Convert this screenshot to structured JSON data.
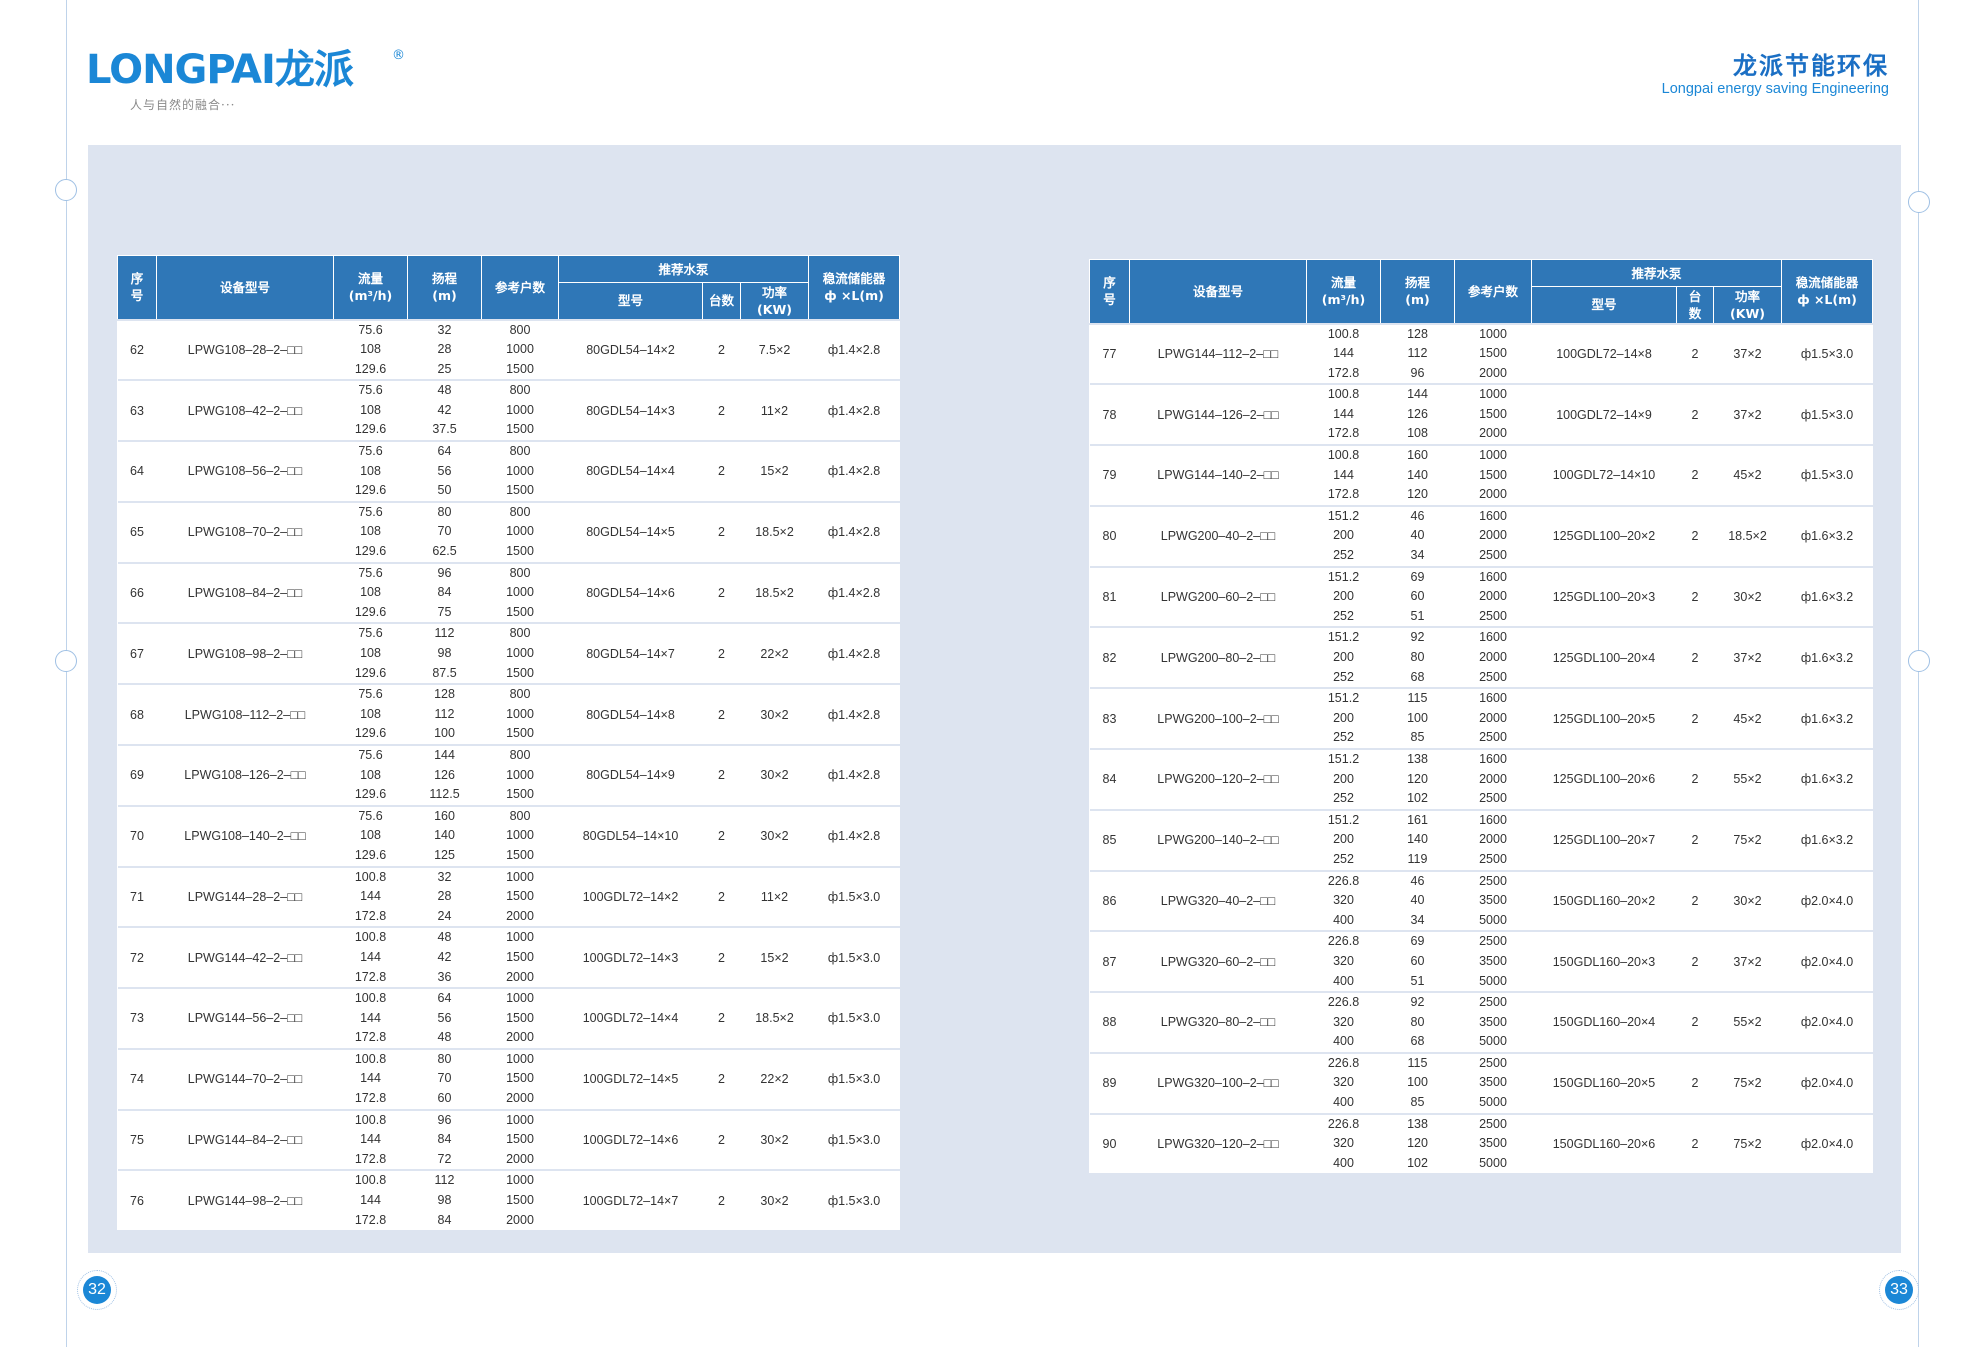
{
  "header": {
    "logo_text": "LONGPAI龙派",
    "logo_reg": "®",
    "slogan": "人与自然的融合···",
    "brand_cn": "龙派节能环保",
    "brand_en": "Longpai energy saving Engineering"
  },
  "pages": {
    "left": "32",
    "right": "33"
  },
  "table_headers": {
    "seq": "序号",
    "model": "设备型号",
    "flow": "流量",
    "flow_unit": "(m³/h)",
    "head": "扬程",
    "head_unit": "(m)",
    "households": "参考户数",
    "pump": "推荐水泵",
    "pump_model": "型号",
    "qty": "台数",
    "power": "功率",
    "power_unit": "(KW)",
    "tank": "稳流储能器",
    "tank_unit": "ф ×L(m)"
  },
  "left_table": [
    {
      "no": "62",
      "model": "LPWG108–28–2–□□",
      "flow": [
        "75.6",
        "108",
        "129.6"
      ],
      "head": [
        "32",
        "28",
        "25"
      ],
      "hh": [
        "800",
        "1000",
        "1500"
      ],
      "pump": "80GDL54–14×2",
      "qty": "2",
      "power": "7.5×2",
      "tank": "ф1.4×2.8"
    },
    {
      "no": "63",
      "model": "LPWG108–42–2–□□",
      "flow": [
        "75.6",
        "108",
        "129.6"
      ],
      "head": [
        "48",
        "42",
        "37.5"
      ],
      "hh": [
        "800",
        "1000",
        "1500"
      ],
      "pump": "80GDL54–14×3",
      "qty": "2",
      "power": "11×2",
      "tank": "ф1.4×2.8"
    },
    {
      "no": "64",
      "model": "LPWG108–56–2–□□",
      "flow": [
        "75.6",
        "108",
        "129.6"
      ],
      "head": [
        "64",
        "56",
        "50"
      ],
      "hh": [
        "800",
        "1000",
        "1500"
      ],
      "pump": "80GDL54–14×4",
      "qty": "2",
      "power": "15×2",
      "tank": "ф1.4×2.8"
    },
    {
      "no": "65",
      "model": "LPWG108–70–2–□□",
      "flow": [
        "75.6",
        "108",
        "129.6"
      ],
      "head": [
        "80",
        "70",
        "62.5"
      ],
      "hh": [
        "800",
        "1000",
        "1500"
      ],
      "pump": "80GDL54–14×5",
      "qty": "2",
      "power": "18.5×2",
      "tank": "ф1.4×2.8"
    },
    {
      "no": "66",
      "model": "LPWG108–84–2–□□",
      "flow": [
        "75.6",
        "108",
        "129.6"
      ],
      "head": [
        "96",
        "84",
        "75"
      ],
      "hh": [
        "800",
        "1000",
        "1500"
      ],
      "pump": "80GDL54–14×6",
      "qty": "2",
      "power": "18.5×2",
      "tank": "ф1.4×2.8"
    },
    {
      "no": "67",
      "model": "LPWG108–98–2–□□",
      "flow": [
        "75.6",
        "108",
        "129.6"
      ],
      "head": [
        "112",
        "98",
        "87.5"
      ],
      "hh": [
        "800",
        "1000",
        "1500"
      ],
      "pump": "80GDL54–14×7",
      "qty": "2",
      "power": "22×2",
      "tank": "ф1.4×2.8"
    },
    {
      "no": "68",
      "model": "LPWG108–112–2–□□",
      "flow": [
        "75.6",
        "108",
        "129.6"
      ],
      "head": [
        "128",
        "112",
        "100"
      ],
      "hh": [
        "800",
        "1000",
        "1500"
      ],
      "pump": "80GDL54–14×8",
      "qty": "2",
      "power": "30×2",
      "tank": "ф1.4×2.8"
    },
    {
      "no": "69",
      "model": "LPWG108–126–2–□□",
      "flow": [
        "75.6",
        "108",
        "129.6"
      ],
      "head": [
        "144",
        "126",
        "112.5"
      ],
      "hh": [
        "800",
        "1000",
        "1500"
      ],
      "pump": "80GDL54–14×9",
      "qty": "2",
      "power": "30×2",
      "tank": "ф1.4×2.8"
    },
    {
      "no": "70",
      "model": "LPWG108–140–2–□□",
      "flow": [
        "75.6",
        "108",
        "129.6"
      ],
      "head": [
        "160",
        "140",
        "125"
      ],
      "hh": [
        "800",
        "1000",
        "1500"
      ],
      "pump": "80GDL54–14×10",
      "qty": "2",
      "power": "30×2",
      "tank": "ф1.4×2.8"
    },
    {
      "no": "71",
      "model": "LPWG144–28–2–□□",
      "flow": [
        "100.8",
        "144",
        "172.8"
      ],
      "head": [
        "32",
        "28",
        "24"
      ],
      "hh": [
        "1000",
        "1500",
        "2000"
      ],
      "pump": "100GDL72–14×2",
      "qty": "2",
      "power": "11×2",
      "tank": "ф1.5×3.0"
    },
    {
      "no": "72",
      "model": "LPWG144–42–2–□□",
      "flow": [
        "100.8",
        "144",
        "172.8"
      ],
      "head": [
        "48",
        "42",
        "36"
      ],
      "hh": [
        "1000",
        "1500",
        "2000"
      ],
      "pump": "100GDL72–14×3",
      "qty": "2",
      "power": "15×2",
      "tank": "ф1.5×3.0"
    },
    {
      "no": "73",
      "model": "LPWG144–56–2–□□",
      "flow": [
        "100.8",
        "144",
        "172.8"
      ],
      "head": [
        "64",
        "56",
        "48"
      ],
      "hh": [
        "1000",
        "1500",
        "2000"
      ],
      "pump": "100GDL72–14×4",
      "qty": "2",
      "power": "18.5×2",
      "tank": "ф1.5×3.0"
    },
    {
      "no": "74",
      "model": "LPWG144–70–2–□□",
      "flow": [
        "100.8",
        "144",
        "172.8"
      ],
      "head": [
        "80",
        "70",
        "60"
      ],
      "hh": [
        "1000",
        "1500",
        "2000"
      ],
      "pump": "100GDL72–14×5",
      "qty": "2",
      "power": "22×2",
      "tank": "ф1.5×3.0"
    },
    {
      "no": "75",
      "model": "LPWG144–84–2–□□",
      "flow": [
        "100.8",
        "144",
        "172.8"
      ],
      "head": [
        "96",
        "84",
        "72"
      ],
      "hh": [
        "1000",
        "1500",
        "2000"
      ],
      "pump": "100GDL72–14×6",
      "qty": "2",
      "power": "30×2",
      "tank": "ф1.5×3.0"
    },
    {
      "no": "76",
      "model": "LPWG144–98–2–□□",
      "flow": [
        "100.8",
        "144",
        "172.8"
      ],
      "head": [
        "112",
        "98",
        "84"
      ],
      "hh": [
        "1000",
        "1500",
        "2000"
      ],
      "pump": "100GDL72–14×7",
      "qty": "2",
      "power": "30×2",
      "tank": "ф1.5×3.0"
    }
  ],
  "right_table": [
    {
      "no": "77",
      "model": "LPWG144–112–2–□□",
      "flow": [
        "100.8",
        "144",
        "172.8"
      ],
      "head": [
        "128",
        "112",
        "96"
      ],
      "hh": [
        "1000",
        "1500",
        "2000"
      ],
      "pump": "100GDL72–14×8",
      "qty": "2",
      "power": "37×2",
      "tank": "ф1.5×3.0"
    },
    {
      "no": "78",
      "model": "LPWG144–126–2–□□",
      "flow": [
        "100.8",
        "144",
        "172.8"
      ],
      "head": [
        "144",
        "126",
        "108"
      ],
      "hh": [
        "1000",
        "1500",
        "2000"
      ],
      "pump": "100GDL72–14×9",
      "qty": "2",
      "power": "37×2",
      "tank": "ф1.5×3.0"
    },
    {
      "no": "79",
      "model": "LPWG144–140–2–□□",
      "flow": [
        "100.8",
        "144",
        "172.8"
      ],
      "head": [
        "160",
        "140",
        "120"
      ],
      "hh": [
        "1000",
        "1500",
        "2000"
      ],
      "pump": "100GDL72–14×10",
      "qty": "2",
      "power": "45×2",
      "tank": "ф1.5×3.0"
    },
    {
      "no": "80",
      "model": "LPWG200–40–2–□□",
      "flow": [
        "151.2",
        "200",
        "252"
      ],
      "head": [
        "46",
        "40",
        "34"
      ],
      "hh": [
        "1600",
        "2000",
        "2500"
      ],
      "pump": "125GDL100–20×2",
      "qty": "2",
      "power": "18.5×2",
      "tank": "ф1.6×3.2"
    },
    {
      "no": "81",
      "model": "LPWG200–60–2–□□",
      "flow": [
        "151.2",
        "200",
        "252"
      ],
      "head": [
        "69",
        "60",
        "51"
      ],
      "hh": [
        "1600",
        "2000",
        "2500"
      ],
      "pump": "125GDL100–20×3",
      "qty": "2",
      "power": "30×2",
      "tank": "ф1.6×3.2"
    },
    {
      "no": "82",
      "model": "LPWG200–80–2–□□",
      "flow": [
        "151.2",
        "200",
        "252"
      ],
      "head": [
        "92",
        "80",
        "68"
      ],
      "hh": [
        "1600",
        "2000",
        "2500"
      ],
      "pump": "125GDL100–20×4",
      "qty": "2",
      "power": "37×2",
      "tank": "ф1.6×3.2"
    },
    {
      "no": "83",
      "model": "LPWG200–100–2–□□",
      "flow": [
        "151.2",
        "200",
        "252"
      ],
      "head": [
        "115",
        "100",
        "85"
      ],
      "hh": [
        "1600",
        "2000",
        "2500"
      ],
      "pump": "125GDL100–20×5",
      "qty": "2",
      "power": "45×2",
      "tank": "ф1.6×3.2"
    },
    {
      "no": "84",
      "model": "LPWG200–120–2–□□",
      "flow": [
        "151.2",
        "200",
        "252"
      ],
      "head": [
        "138",
        "120",
        "102"
      ],
      "hh": [
        "1600",
        "2000",
        "2500"
      ],
      "pump": "125GDL100–20×6",
      "qty": "2",
      "power": "55×2",
      "tank": "ф1.6×3.2"
    },
    {
      "no": "85",
      "model": "LPWG200–140–2–□□",
      "flow": [
        "151.2",
        "200",
        "252"
      ],
      "head": [
        "161",
        "140",
        "119"
      ],
      "hh": [
        "1600",
        "2000",
        "2500"
      ],
      "pump": "125GDL100–20×7",
      "qty": "2",
      "power": "75×2",
      "tank": "ф1.6×3.2"
    },
    {
      "no": "86",
      "model": "LPWG320–40–2–□□",
      "flow": [
        "226.8",
        "320",
        "400"
      ],
      "head": [
        "46",
        "40",
        "34"
      ],
      "hh": [
        "2500",
        "3500",
        "5000"
      ],
      "pump": "150GDL160–20×2",
      "qty": "2",
      "power": "30×2",
      "tank": "ф2.0×4.0"
    },
    {
      "no": "87",
      "model": "LPWG320–60–2–□□",
      "flow": [
        "226.8",
        "320",
        "400"
      ],
      "head": [
        "69",
        "60",
        "51"
      ],
      "hh": [
        "2500",
        "3500",
        "5000"
      ],
      "pump": "150GDL160–20×3",
      "qty": "2",
      "power": "37×2",
      "tank": "ф2.0×4.0"
    },
    {
      "no": "88",
      "model": "LPWG320–80–2–□□",
      "flow": [
        "226.8",
        "320",
        "400"
      ],
      "head": [
        "92",
        "80",
        "68"
      ],
      "hh": [
        "2500",
        "3500",
        "5000"
      ],
      "pump": "150GDL160–20×4",
      "qty": "2",
      "power": "55×2",
      "tank": "ф2.0×4.0"
    },
    {
      "no": "89",
      "model": "LPWG320–100–2–□□",
      "flow": [
        "226.8",
        "320",
        "400"
      ],
      "head": [
        "115",
        "100",
        "85"
      ],
      "hh": [
        "2500",
        "3500",
        "5000"
      ],
      "pump": "150GDL160–20×5",
      "qty": "2",
      "power": "75×2",
      "tank": "ф2.0×4.0"
    },
    {
      "no": "90",
      "model": "LPWG320–120–2–□□",
      "flow": [
        "226.8",
        "320",
        "400"
      ],
      "head": [
        "138",
        "120",
        "102"
      ],
      "hh": [
        "2500",
        "3500",
        "5000"
      ],
      "pump": "150GDL160–20×6",
      "qty": "2",
      "power": "75×2",
      "tank": "ф2.0×4.0"
    }
  ]
}
